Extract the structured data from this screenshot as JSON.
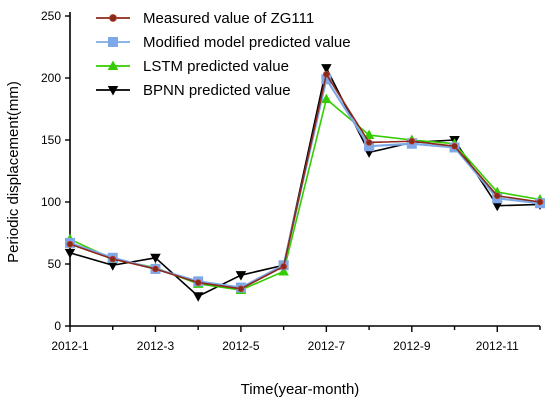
{
  "chart_data": {
    "type": "line",
    "title": "",
    "xlabel": "Time(year-month)",
    "ylabel": "Periodic displacement(mm)",
    "x": [
      "2012-1",
      "2012-2",
      "2012-3",
      "2012-4",
      "2012-5",
      "2012-6",
      "2012-7",
      "2012-8",
      "2012-9",
      "2012-10",
      "2012-11",
      "2012-12"
    ],
    "xtick_labels": [
      "2012-1",
      "2012-3",
      "2012-5",
      "2012-7",
      "2012-9",
      "2012-11"
    ],
    "ylim": [
      0,
      250
    ],
    "yticks": [
      0,
      50,
      100,
      150,
      200,
      250
    ],
    "grid": false,
    "legend_position": "top-left",
    "series": [
      {
        "name": "Measured value of ZG111",
        "color": "#8b2a1a",
        "marker": "circle",
        "values": [
          66,
          54,
          46,
          35,
          30,
          48,
          203,
          148,
          149,
          145,
          105,
          100
        ]
      },
      {
        "name": "Modified model predicted value",
        "color": "#7fa8e8",
        "marker": "square",
        "values": [
          67,
          55,
          46,
          36,
          31,
          49,
          199,
          145,
          147,
          144,
          103,
          99
        ]
      },
      {
        "name": "LSTM predicted value",
        "color": "#33cc00",
        "marker": "triangle-up",
        "values": [
          70,
          54,
          47,
          34,
          29,
          44,
          183,
          154,
          150,
          147,
          108,
          102
        ]
      },
      {
        "name": "BPNN predicted value",
        "color": "#000000",
        "marker": "triangle-down",
        "values": [
          59,
          49,
          55,
          24,
          41,
          49,
          208,
          140,
          148,
          150,
          97,
          98
        ]
      }
    ]
  }
}
